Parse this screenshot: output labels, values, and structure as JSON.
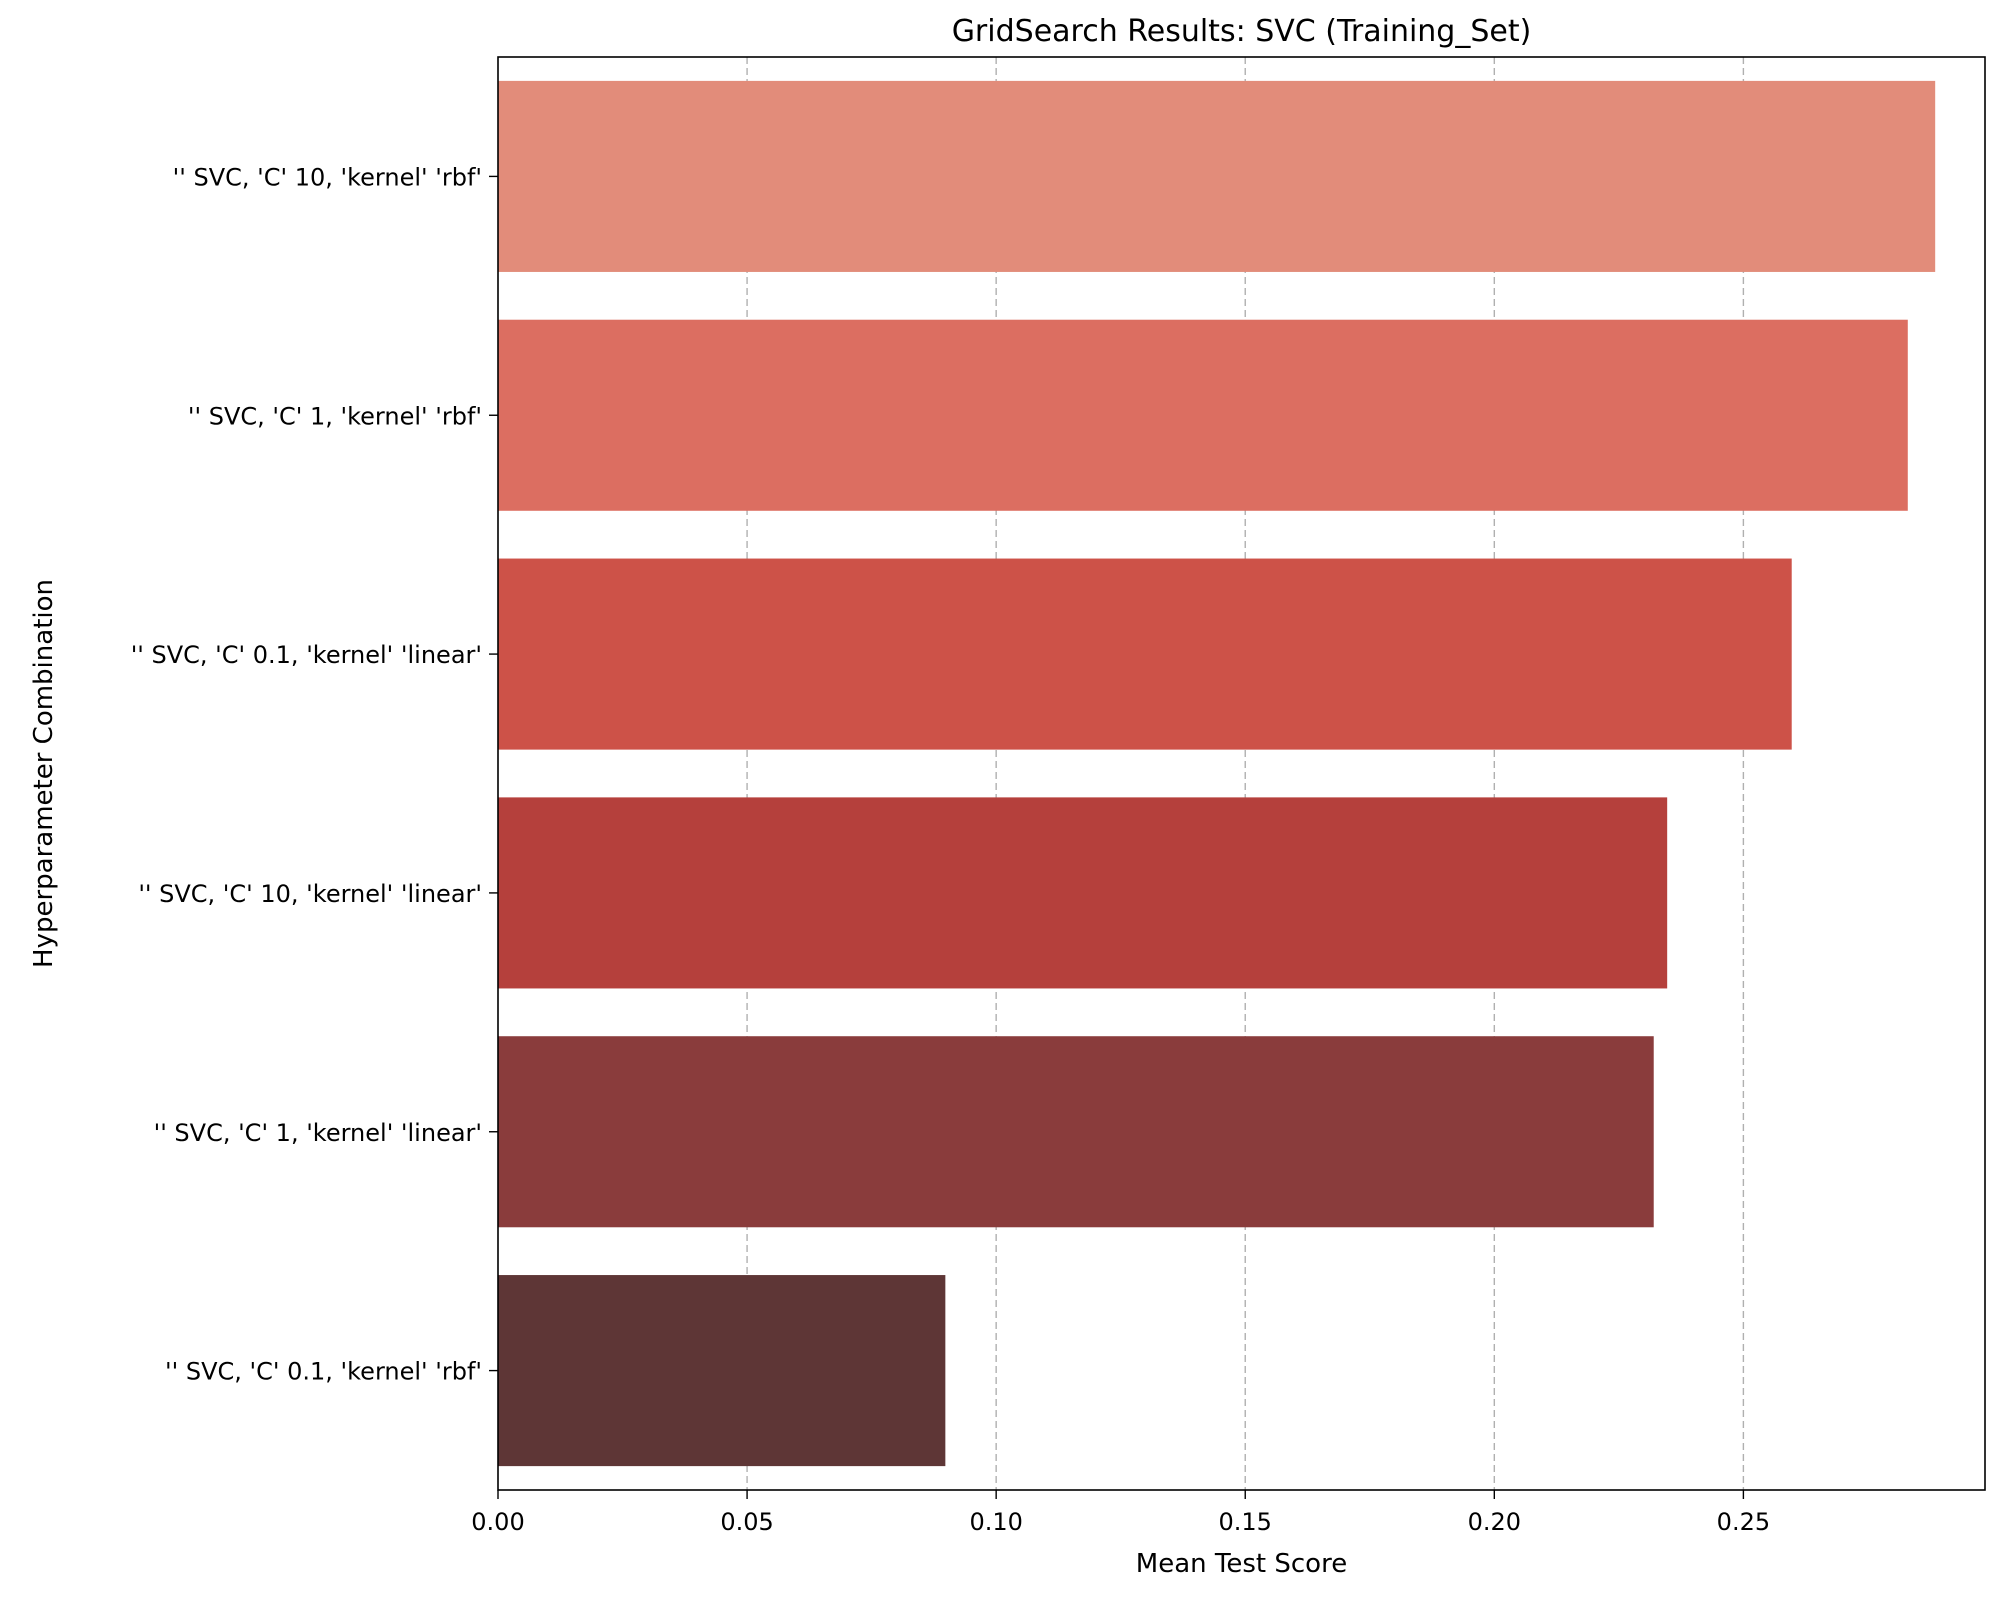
{
  "chart_data": {
    "type": "bar",
    "orientation": "horizontal",
    "title": "GridSearch Results: SVC (Training_Set)",
    "xlabel": "Mean Test Score",
    "ylabel": "Hyperparameter Combination",
    "categories": [
      "'' SVC, 'C' 10, 'kernel' 'rbf'",
      "'' SVC, 'C' 1, 'kernel' 'rbf'",
      "'' SVC, 'C' 0.1, 'kernel' 'linear'",
      "'' SVC, 'C' 10, 'kernel' 'linear'",
      "'' SVC, 'C' 1, 'kernel' 'linear'",
      "'' SVC, 'C' 0.1, 'kernel' 'rbf'"
    ],
    "values": [
      0.2885,
      0.283,
      0.2597,
      0.2347,
      0.232,
      0.0898
    ],
    "colors": [
      "#e28c7a",
      "#dc6e61",
      "#cd5248",
      "#b5403c",
      "#8a3c3c",
      "#5e3636"
    ],
    "xlim": [
      0,
      0.2985
    ],
    "xticks": [
      0.0,
      0.05,
      0.1,
      0.15,
      0.2,
      0.25
    ],
    "xtick_labels": [
      "0.00",
      "0.05",
      "0.10",
      "0.15",
      "0.20",
      "0.25"
    ],
    "grid": "x-dashed"
  }
}
